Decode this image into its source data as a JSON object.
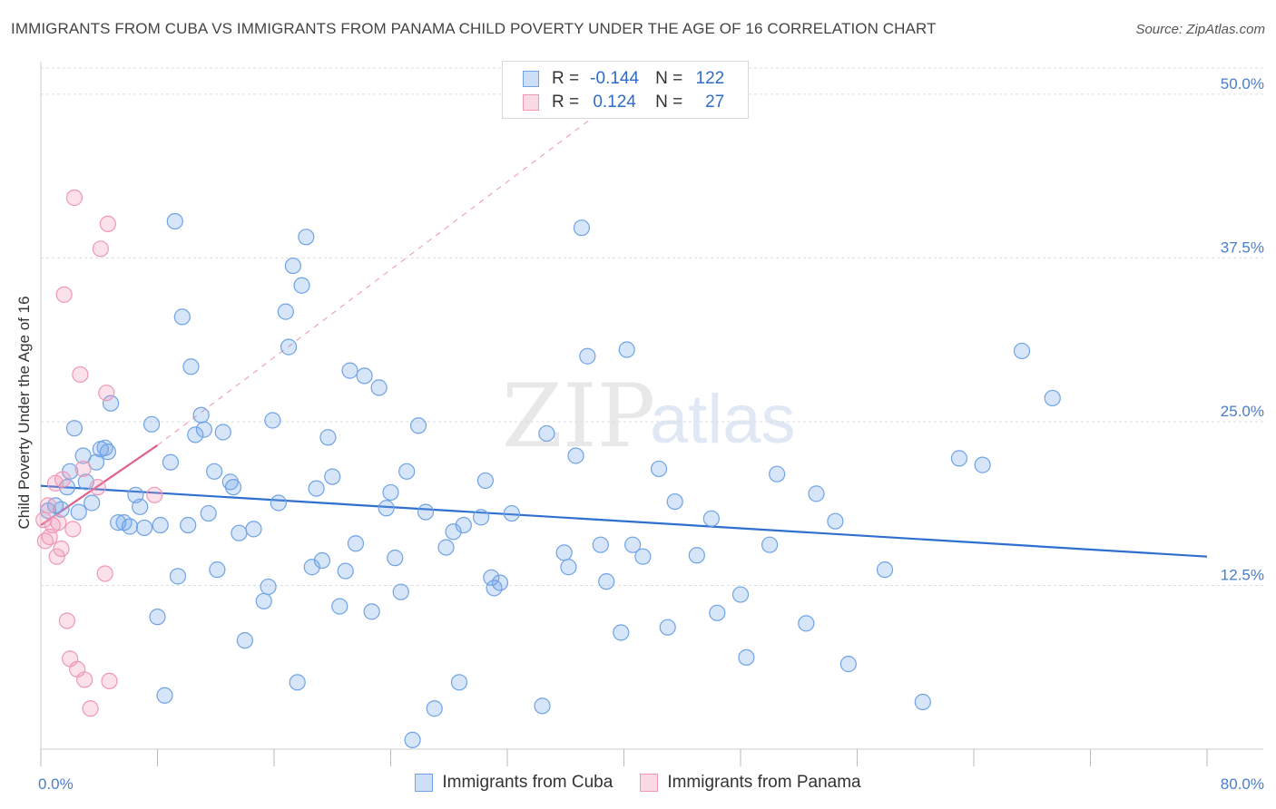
{
  "header": {
    "title": "IMMIGRANTS FROM CUBA VS IMMIGRANTS FROM PANAMA CHILD POVERTY UNDER THE AGE OF 16 CORRELATION CHART",
    "source": "Source: ZipAtlas.com"
  },
  "watermark": {
    "zip": "ZIP",
    "atlas": "atlas"
  },
  "legend_top": {
    "r_label": "R =",
    "n_label": "N =",
    "rows": [
      {
        "r": "-0.144",
        "n": "122",
        "color": "#6fa3e6"
      },
      {
        "r": "0.124",
        "n": "27",
        "color": "#f097b5"
      }
    ]
  },
  "chart_data": {
    "type": "scatter",
    "title": "IMMIGRANTS FROM CUBA VS IMMIGRANTS FROM PANAMA CHILD POVERTY UNDER THE AGE OF 16 CORRELATION CHART",
    "xlabel": "",
    "ylabel": "Child Poverty Under the Age of 16",
    "xlim": [
      0,
      80
    ],
    "ylim": [
      0,
      52
    ],
    "x_ticks": [
      "0.0%",
      "80.0%"
    ],
    "y_ticks": [
      {
        "value": 12.5,
        "label": "12.5%"
      },
      {
        "value": 25.0,
        "label": "25.0%"
      },
      {
        "value": 37.5,
        "label": "37.5%"
      },
      {
        "value": 50.0,
        "label": "50.0%"
      }
    ],
    "grid": true,
    "legend_position": "bottom",
    "series": [
      {
        "name": "Immigrants from Cuba",
        "color": "#6fa3e6",
        "fill": "rgba(111,163,230,0.28)",
        "trend": {
          "x": [
            0,
            80
          ],
          "y": [
            20.1,
            14.7
          ]
        },
        "points": [
          [
            0.5,
            18.2
          ],
          [
            1.0,
            18.6
          ],
          [
            1.4,
            18.3
          ],
          [
            1.8,
            20.0
          ],
          [
            2.0,
            21.2
          ],
          [
            2.3,
            24.5
          ],
          [
            2.6,
            18.1
          ],
          [
            2.9,
            22.4
          ],
          [
            3.1,
            20.4
          ],
          [
            3.5,
            18.8
          ],
          [
            3.8,
            21.9
          ],
          [
            4.1,
            22.9
          ],
          [
            4.4,
            23.0
          ],
          [
            4.6,
            22.7
          ],
          [
            4.8,
            26.4
          ],
          [
            5.3,
            17.3
          ],
          [
            5.7,
            17.3
          ],
          [
            6.1,
            17.0
          ],
          [
            6.5,
            19.4
          ],
          [
            6.8,
            18.5
          ],
          [
            7.1,
            16.9
          ],
          [
            7.6,
            24.8
          ],
          [
            8.0,
            10.1
          ],
          [
            8.2,
            17.1
          ],
          [
            8.5,
            4.1
          ],
          [
            8.9,
            21.9
          ],
          [
            9.2,
            40.3
          ],
          [
            9.4,
            13.2
          ],
          [
            9.7,
            33.0
          ],
          [
            10.1,
            17.1
          ],
          [
            10.3,
            29.2
          ],
          [
            10.6,
            24.0
          ],
          [
            11.0,
            25.5
          ],
          [
            11.2,
            24.4
          ],
          [
            11.5,
            18.0
          ],
          [
            11.9,
            21.2
          ],
          [
            12.1,
            13.7
          ],
          [
            12.5,
            24.2
          ],
          [
            13.0,
            20.4
          ],
          [
            13.2,
            20.0
          ],
          [
            13.6,
            16.5
          ],
          [
            14.0,
            8.3
          ],
          [
            14.6,
            16.8
          ],
          [
            15.3,
            11.3
          ],
          [
            15.6,
            12.4
          ],
          [
            15.9,
            25.1
          ],
          [
            16.3,
            18.8
          ],
          [
            16.8,
            33.4
          ],
          [
            17.0,
            30.7
          ],
          [
            17.3,
            36.9
          ],
          [
            17.6,
            5.1
          ],
          [
            17.9,
            35.4
          ],
          [
            18.2,
            39.1
          ],
          [
            18.6,
            13.9
          ],
          [
            18.9,
            19.9
          ],
          [
            19.3,
            14.4
          ],
          [
            19.7,
            23.8
          ],
          [
            20.0,
            20.8
          ],
          [
            20.5,
            10.9
          ],
          [
            20.9,
            13.6
          ],
          [
            21.2,
            28.9
          ],
          [
            21.6,
            15.7
          ],
          [
            22.2,
            28.5
          ],
          [
            22.7,
            10.5
          ],
          [
            23.2,
            27.6
          ],
          [
            23.7,
            18.4
          ],
          [
            24.0,
            19.6
          ],
          [
            24.3,
            14.6
          ],
          [
            24.7,
            12.0
          ],
          [
            25.1,
            21.2
          ],
          [
            25.5,
            0.7
          ],
          [
            25.9,
            24.7
          ],
          [
            26.4,
            18.1
          ],
          [
            27.0,
            3.1
          ],
          [
            27.8,
            15.4
          ],
          [
            28.3,
            16.6
          ],
          [
            28.7,
            5.1
          ],
          [
            29.0,
            17.1
          ],
          [
            30.2,
            17.7
          ],
          [
            30.5,
            20.5
          ],
          [
            30.9,
            13.1
          ],
          [
            31.1,
            12.3
          ],
          [
            31.5,
            12.7
          ],
          [
            32.3,
            18.0
          ],
          [
            34.4,
            3.3
          ],
          [
            34.7,
            24.1
          ],
          [
            35.9,
            15.0
          ],
          [
            36.2,
            13.9
          ],
          [
            36.7,
            22.4
          ],
          [
            37.1,
            39.8
          ],
          [
            37.5,
            30.0
          ],
          [
            38.4,
            15.6
          ],
          [
            38.8,
            12.8
          ],
          [
            39.8,
            8.9
          ],
          [
            40.2,
            30.5
          ],
          [
            40.6,
            15.6
          ],
          [
            41.3,
            14.7
          ],
          [
            42.4,
            21.4
          ],
          [
            43.0,
            9.3
          ],
          [
            43.5,
            18.9
          ],
          [
            45.0,
            14.8
          ],
          [
            46.0,
            17.6
          ],
          [
            46.4,
            10.4
          ],
          [
            48.0,
            11.8
          ],
          [
            48.4,
            7.0
          ],
          [
            50.0,
            15.6
          ],
          [
            50.5,
            21.0
          ],
          [
            52.5,
            9.6
          ],
          [
            53.2,
            19.5
          ],
          [
            54.5,
            17.4
          ],
          [
            55.4,
            6.5
          ],
          [
            57.9,
            13.7
          ],
          [
            60.5,
            3.6
          ],
          [
            63.0,
            22.2
          ],
          [
            64.6,
            21.7
          ],
          [
            67.3,
            30.4
          ],
          [
            69.4,
            26.8
          ]
        ]
      },
      {
        "name": "Immigrants from Panama",
        "color": "#f097b5",
        "fill": "rgba(240,151,181,0.28)",
        "trend": {
          "x": [
            0,
            8
          ],
          "y": [
            17.1,
            23.2
          ]
        },
        "trend_extension": {
          "x": [
            8,
            39.5
          ],
          "y": [
            23.2,
            49.6
          ]
        },
        "points": [
          [
            0.2,
            17.5
          ],
          [
            0.3,
            15.9
          ],
          [
            0.5,
            18.6
          ],
          [
            0.6,
            16.2
          ],
          [
            0.8,
            17.1
          ],
          [
            1.0,
            20.3
          ],
          [
            1.1,
            14.7
          ],
          [
            1.2,
            17.3
          ],
          [
            1.4,
            15.3
          ],
          [
            1.5,
            20.6
          ],
          [
            1.6,
            34.7
          ],
          [
            1.8,
            9.8
          ],
          [
            2.0,
            6.9
          ],
          [
            2.2,
            16.8
          ],
          [
            2.3,
            42.1
          ],
          [
            2.5,
            6.1
          ],
          [
            2.7,
            28.6
          ],
          [
            2.9,
            21.4
          ],
          [
            3.0,
            5.3
          ],
          [
            3.4,
            3.1
          ],
          [
            4.1,
            38.2
          ],
          [
            4.4,
            13.4
          ],
          [
            4.5,
            27.2
          ],
          [
            4.6,
            40.1
          ],
          [
            4.7,
            5.2
          ],
          [
            7.8,
            19.4
          ],
          [
            3.9,
            20.0
          ]
        ]
      }
    ]
  },
  "bottom_legend": [
    {
      "label": "Immigrants from Cuba",
      "color": "#6fa3e6"
    },
    {
      "label": "Immigrants from Panama",
      "color": "#f097b5"
    }
  ]
}
